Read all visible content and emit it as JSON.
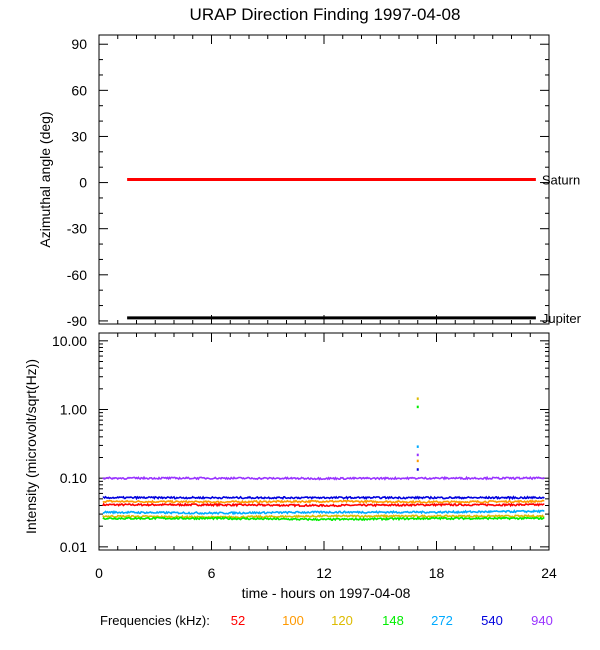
{
  "chart_data": [
    {
      "type": "line",
      "title": "URAP Direction Finding  1997-04-08",
      "ylabel": "Azimuthal angle (deg)",
      "ylim": [
        -92,
        96
      ],
      "yticks": [
        "90",
        "60",
        "30",
        "0",
        "-30",
        "-60",
        "-90"
      ],
      "yticks_values": [
        90,
        60,
        30,
        0,
        -30,
        -60,
        -90
      ],
      "xlim": [
        0,
        24
      ],
      "series": [
        {
          "name": "Saturn",
          "x": [
            1.5,
            23.3
          ],
          "values": [
            2,
            2
          ],
          "color": "#ff0000"
        },
        {
          "name": "Jupiter",
          "x": [
            1.5,
            23.3
          ],
          "values": [
            -88,
            -88
          ],
          "color": "#000000"
        }
      ]
    },
    {
      "type": "line",
      "ylabel": "Intensity (microvolt/sqrt(Hz))",
      "yscale": "log",
      "ylim": [
        0.009,
        13
      ],
      "yticks": [
        "10.00",
        "1.00",
        "0.10",
        "0.01"
      ],
      "yticks_values": [
        10,
        1,
        0.1,
        0.01
      ],
      "xlim": [
        0,
        24
      ],
      "xticks": [
        "0",
        "6",
        "12",
        "18",
        "24"
      ],
      "xticks_values": [
        0,
        6,
        12,
        18,
        24
      ],
      "xlabel": "time - hours on 1997-04-08",
      "legend_title": "Frequencies (kHz):",
      "series": [
        {
          "name": "52",
          "color": "#ff0000",
          "values": [
            0.041,
            0.041,
            0.04,
            0.041,
            0.041
          ]
        },
        {
          "name": "100",
          "color": "#ff9900",
          "values": [
            0.046,
            0.045,
            0.046,
            0.045,
            0.046
          ]
        },
        {
          "name": "120",
          "color": "#ddbb00",
          "values": [
            0.028,
            0.027,
            0.028,
            0.028,
            0.028
          ]
        },
        {
          "name": "148",
          "color": "#00ee00",
          "values": [
            0.026,
            0.026,
            0.025,
            0.026,
            0.026
          ]
        },
        {
          "name": "272",
          "color": "#00aaff",
          "values": [
            0.032,
            0.031,
            0.032,
            0.032,
            0.033
          ]
        },
        {
          "name": "540",
          "color": "#0000dd",
          "values": [
            0.052,
            0.052,
            0.052,
            0.052,
            0.052
          ]
        },
        {
          "name": "940",
          "color": "#9933ff",
          "values": [
            0.1,
            0.1,
            0.099,
            0.1,
            0.1
          ]
        }
      ],
      "x": [
        0.2,
        6,
        12,
        18,
        23.8
      ],
      "spikes": [
        {
          "x": 17.0,
          "values": [
            1.45,
            1.1
          ],
          "colors": [
            "#ddbb00",
            "#00ee00"
          ]
        },
        {
          "x": 17.0,
          "values": [
            0.29,
            0.22,
            0.18,
            0.135
          ],
          "colors": [
            "#00aaff",
            "#9933ff",
            "#ff9900",
            "#0000dd"
          ]
        }
      ]
    }
  ]
}
